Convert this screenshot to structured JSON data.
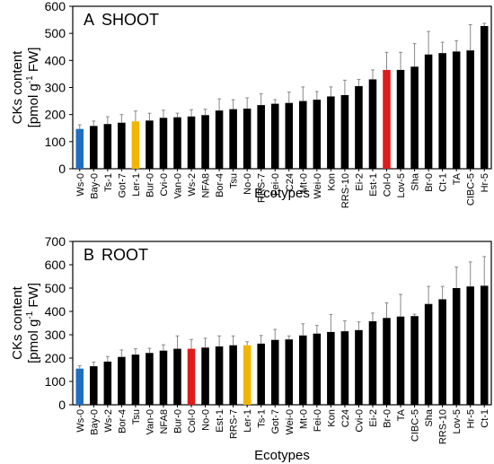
{
  "chart_data": [
    {
      "type": "bar",
      "panel_label": "A",
      "title": "SHOOT",
      "xlabel": "Ecotypes",
      "ylabel_line1": "CKs content",
      "ylabel_line2_parts": [
        "[pmol g",
        "-1",
        " FW]"
      ],
      "ylim": [
        0,
        600
      ],
      "yticks": [
        0,
        100,
        200,
        300,
        400,
        500,
        600
      ],
      "categories": [
        "Ws-0",
        "Bay-0",
        "Ts-1",
        "Got-7",
        "Ler-1",
        "Bur-0",
        "Cvi-0",
        "Van-0",
        "Ws-2",
        "NFA8",
        "Bor-4",
        "Tsu",
        "No-0",
        "RRS-7",
        "Fei-0",
        "C24",
        "Mt-0",
        "Wei-0",
        "Kon",
        "RRS-10",
        "Ei-2",
        "Est-1",
        "Col-0",
        "Lov-5",
        "Sha",
        "Br-0",
        "Ct-1",
        "TA",
        "CIBC-5",
        "Hr-5"
      ],
      "values": [
        147,
        158,
        165,
        170,
        175,
        178,
        188,
        190,
        193,
        198,
        215,
        220,
        222,
        235,
        240,
        243,
        250,
        255,
        267,
        272,
        305,
        330,
        365,
        365,
        377,
        422,
        427,
        433,
        437,
        527
      ],
      "errors": [
        15,
        18,
        27,
        30,
        38,
        27,
        28,
        15,
        25,
        22,
        43,
        35,
        40,
        42,
        15,
        40,
        52,
        30,
        35,
        55,
        25,
        35,
        65,
        65,
        85,
        85,
        40,
        40,
        95,
        10
      ],
      "colors": [
        "#1f6fc0",
        "#000000",
        "#000000",
        "#000000",
        "#f2b600",
        "#000000",
        "#000000",
        "#000000",
        "#000000",
        "#000000",
        "#000000",
        "#000000",
        "#000000",
        "#000000",
        "#000000",
        "#000000",
        "#000000",
        "#000000",
        "#000000",
        "#000000",
        "#000000",
        "#000000",
        "#e01b1b",
        "#000000",
        "#000000",
        "#000000",
        "#000000",
        "#000000",
        "#000000",
        "#000000"
      ]
    },
    {
      "type": "bar",
      "panel_label": "B",
      "title": "ROOT",
      "xlabel": "Ecotypes",
      "ylabel_line1": "CKs content",
      "ylabel_line2_parts": [
        "[pmol g",
        "-1",
        " FW]"
      ],
      "ylim": [
        0,
        700
      ],
      "yticks": [
        0,
        100,
        200,
        300,
        400,
        500,
        600,
        700
      ],
      "categories": [
        "Ws-0",
        "Bay-0",
        "Ws-2",
        "Bor-4",
        "Tsu",
        "Van-0",
        "NFA8",
        "Bur-0",
        "Col-0",
        "No-0",
        "Est-1",
        "RRS-7",
        "Ler-1",
        "Ts-1",
        "Got-7",
        "Wei-0",
        "Mt-0",
        "Fei-0",
        "Kon",
        "C24",
        "Cvi-0",
        "Ei-2",
        "Br-0",
        "TA",
        "CIBC-5",
        "Sha",
        "RRS-10",
        "Lov-5",
        "Hr-5",
        "Ct-1"
      ],
      "values": [
        155,
        165,
        185,
        205,
        215,
        222,
        232,
        240,
        240,
        245,
        250,
        255,
        255,
        262,
        278,
        280,
        297,
        305,
        312,
        315,
        320,
        358,
        372,
        378,
        380,
        432,
        452,
        500,
        507,
        510
      ],
      "errors": [
        12,
        18,
        22,
        30,
        25,
        20,
        25,
        55,
        40,
        40,
        45,
        40,
        15,
        35,
        45,
        15,
        50,
        35,
        75,
        45,
        35,
        35,
        65,
        95,
        8,
        75,
        55,
        90,
        105,
        125
      ],
      "colors": [
        "#1f6fc0",
        "#000000",
        "#000000",
        "#000000",
        "#000000",
        "#000000",
        "#000000",
        "#000000",
        "#e01b1b",
        "#000000",
        "#000000",
        "#000000",
        "#f2b600",
        "#000000",
        "#000000",
        "#000000",
        "#000000",
        "#000000",
        "#000000",
        "#000000",
        "#000000",
        "#000000",
        "#000000",
        "#000000",
        "#000000",
        "#000000",
        "#000000",
        "#000000",
        "#000000",
        "#000000"
      ]
    }
  ]
}
